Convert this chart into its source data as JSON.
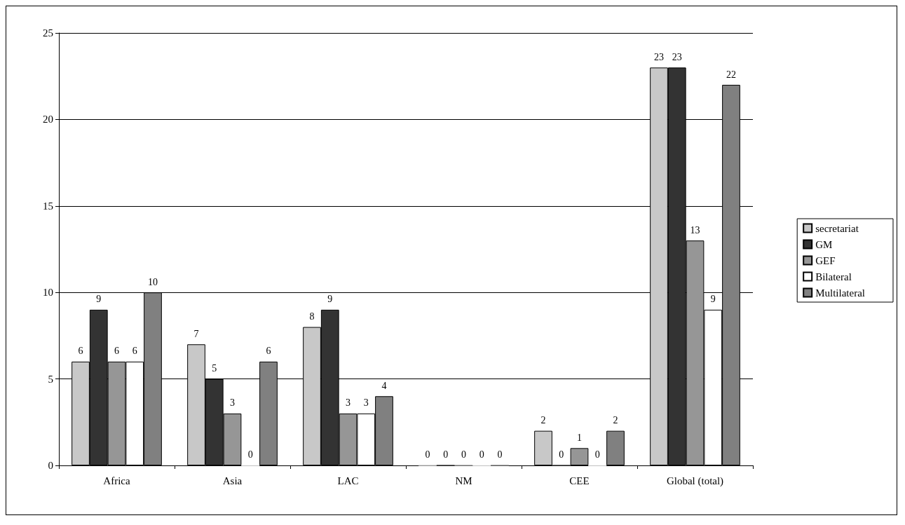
{
  "chart_data": {
    "type": "bar",
    "categories": [
      "Africa",
      "Asia",
      "LAC",
      "NM",
      "CEE",
      "Global (total)"
    ],
    "series": [
      {
        "name": "secretariat",
        "color": "#c8c8c8",
        "values": [
          6,
          7,
          8,
          0,
          2,
          23
        ]
      },
      {
        "name": "GM",
        "color": "#333333",
        "values": [
          9,
          5,
          9,
          0,
          0,
          23
        ]
      },
      {
        "name": "GEF",
        "color": "#969696",
        "values": [
          6,
          3,
          3,
          0,
          1,
          13
        ]
      },
      {
        "name": "Bilateral",
        "color": "#ffffff",
        "values": [
          6,
          0,
          3,
          0,
          0,
          9
        ]
      },
      {
        "name": "Multilateral",
        "color": "#808080",
        "values": [
          10,
          6,
          4,
          0,
          2,
          22
        ]
      }
    ],
    "ylim": [
      0,
      25
    ],
    "yticks": [
      0,
      5,
      10,
      15,
      20,
      25
    ],
    "grid": "y",
    "legend": "right",
    "data_labels": true
  }
}
